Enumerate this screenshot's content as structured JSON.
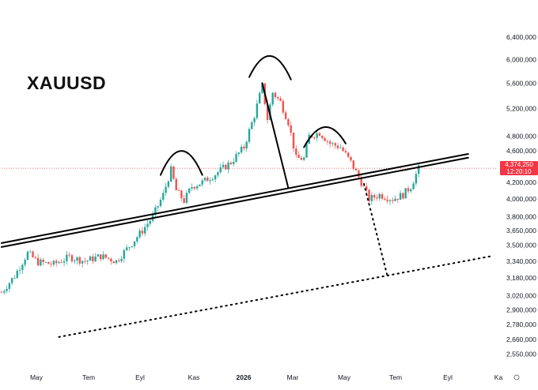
{
  "chart_data": {
    "type": "candlestick",
    "title": "XAUUSD",
    "symbol": "XAUUSD",
    "y_scale": "log",
    "ylim": [
      2450,
      7000
    ],
    "y_ticks": [
      {
        "value": 2550,
        "label": "2,550,000"
      },
      {
        "value": 2660,
        "label": "2,660,000"
      },
      {
        "value": 2780,
        "label": "2,780,000"
      },
      {
        "value": 2900,
        "label": "2,900,000"
      },
      {
        "value": 3020,
        "label": "3,020,000"
      },
      {
        "value": 3180,
        "label": "3,180,000"
      },
      {
        "value": 3340,
        "label": "3,340,000"
      },
      {
        "value": 3500,
        "label": "3,500,000"
      },
      {
        "value": 3650,
        "label": "3,650,000"
      },
      {
        "value": 3800,
        "label": "3,800,000"
      },
      {
        "value": 4000,
        "label": "4,000,000"
      },
      {
        "value": 4200,
        "label": "4,200,000"
      },
      {
        "value": 4600,
        "label": "4,600,000"
      },
      {
        "value": 4800,
        "label": "4,800,000"
      },
      {
        "value": 5200,
        "label": "5,200,000"
      },
      {
        "value": 5600,
        "label": "5,600,000"
      },
      {
        "value": 6000,
        "label": "6,000,000"
      },
      {
        "value": 6400,
        "label": "6,400,000"
      }
    ],
    "x_ticks": [
      "May",
      "Tem",
      "Eyl",
      "Kas",
      "2026",
      "Mar",
      "May",
      "Tem",
      "Eyl",
      "Ka"
    ],
    "x_ticks_bold": [
      "2026"
    ],
    "last_price": {
      "value": 4374.25,
      "label": "4,374,250",
      "countdown": "12:20:10"
    },
    "colors": {
      "up": "#26a69a",
      "down": "#ef5350",
      "price_line": "#f23645",
      "lines": "#000000"
    },
    "grid": false,
    "anchors": [
      {
        "t": 0,
        "p": 3050
      },
      {
        "t": 5,
        "p": 3200
      },
      {
        "t": 10,
        "p": 3420
      },
      {
        "t": 14,
        "p": 3330
      },
      {
        "t": 20,
        "p": 3310
      },
      {
        "t": 26,
        "p": 3380
      },
      {
        "t": 32,
        "p": 3340
      },
      {
        "t": 38,
        "p": 3390
      },
      {
        "t": 44,
        "p": 3340
      },
      {
        "t": 50,
        "p": 3520
      },
      {
        "t": 54,
        "p": 3650
      },
      {
        "t": 58,
        "p": 3800
      },
      {
        "t": 62,
        "p": 4050
      },
      {
        "t": 65,
        "p": 4350
      },
      {
        "t": 67,
        "p": 4100
      },
      {
        "t": 70,
        "p": 3980
      },
      {
        "t": 73,
        "p": 4150
      },
      {
        "t": 77,
        "p": 4200
      },
      {
        "t": 82,
        "p": 4300
      },
      {
        "t": 88,
        "p": 4450
      },
      {
        "t": 93,
        "p": 4650
      },
      {
        "t": 97,
        "p": 5100
      },
      {
        "t": 100,
        "p": 5550
      },
      {
        "t": 102,
        "p": 5050
      },
      {
        "t": 104,
        "p": 5450
      },
      {
        "t": 107,
        "p": 5300
      },
      {
        "t": 110,
        "p": 5000
      },
      {
        "t": 113,
        "p": 4500
      },
      {
        "t": 116,
        "p": 4500
      },
      {
        "t": 118,
        "p": 4800
      },
      {
        "t": 122,
        "p": 4850
      },
      {
        "t": 126,
        "p": 4700
      },
      {
        "t": 130,
        "p": 4650
      },
      {
        "t": 134,
        "p": 4450
      },
      {
        "t": 138,
        "p": 4200
      },
      {
        "t": 141,
        "p": 4000
      },
      {
        "t": 145,
        "p": 4050
      },
      {
        "t": 150,
        "p": 4000
      },
      {
        "t": 154,
        "p": 4050
      },
      {
        "t": 157,
        "p": 4150
      },
      {
        "t": 160,
        "p": 4370
      }
    ],
    "annotations": {
      "upper_neckline": [
        {
          "t": 0,
          "p": 3520
        },
        {
          "t": 179,
          "p": 4560
        }
      ],
      "lower_neckline": [
        {
          "t": 0,
          "p": 3480
        },
        {
          "t": 179,
          "p": 4510
        }
      ],
      "head_drop": [
        {
          "t": 100,
          "p": 5600
        },
        {
          "t": 110,
          "p": 4130
        }
      ],
      "projection_drop": [
        {
          "t": 139,
          "p": 4180
        },
        {
          "t": 148,
          "p": 3200
        }
      ],
      "lower_channel": [
        {
          "t": 22,
          "p": 2680
        },
        {
          "t": 188,
          "p": 3390
        }
      ],
      "arcs": [
        {
          "left": {
            "t": 61,
            "p": 4290
          },
          "peak": {
            "t": 69,
            "p": 4600
          },
          "right": {
            "t": 77,
            "p": 4290
          }
        },
        {
          "left": {
            "t": 95,
            "p": 5700
          },
          "peak": {
            "t": 103,
            "p": 6060
          },
          "right": {
            "t": 111,
            "p": 5660
          }
        },
        {
          "left": {
            "t": 116,
            "p": 4650
          },
          "peak": {
            "t": 124,
            "p": 4930
          },
          "right": {
            "t": 132,
            "p": 4700
          }
        }
      ]
    }
  }
}
